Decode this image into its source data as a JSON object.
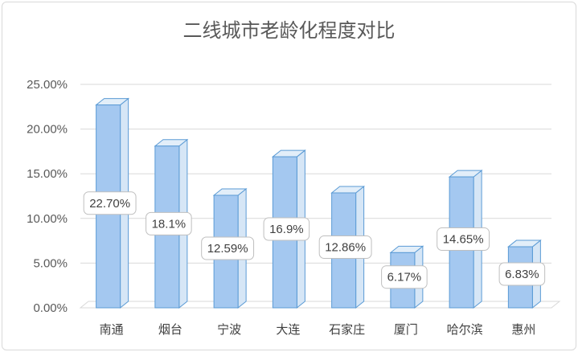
{
  "chart_data": {
    "type": "bar",
    "title": "二线城市老龄化程度对比",
    "categories": [
      "南通",
      "烟台",
      "宁波",
      "大连",
      "石家庄",
      "厦门",
      "哈尔滨",
      "惠州"
    ],
    "values": [
      22.7,
      18.1,
      12.59,
      16.9,
      12.86,
      6.17,
      14.65,
      6.83
    ],
    "data_labels": [
      "22.70%",
      "18.1%",
      "12.59%",
      "16.9%",
      "12.86%",
      "6.17%",
      "14.65%",
      "6.83%"
    ],
    "y_ticks": [
      "0.00%",
      "5.00%",
      "10.00%",
      "15.00%",
      "20.00%",
      "25.00%"
    ],
    "ylim": [
      0,
      25
    ],
    "xlabel": "",
    "ylabel": "",
    "grid": true,
    "legend": "none",
    "colors": {
      "bar_front": "#a4c8f0",
      "bar_side": "#d6e6f6",
      "bar_top": "#e2eef9",
      "bar_edge": "#5b9bd5",
      "grid": "#d9d9d9",
      "label_border": "#bfbfbf"
    }
  }
}
